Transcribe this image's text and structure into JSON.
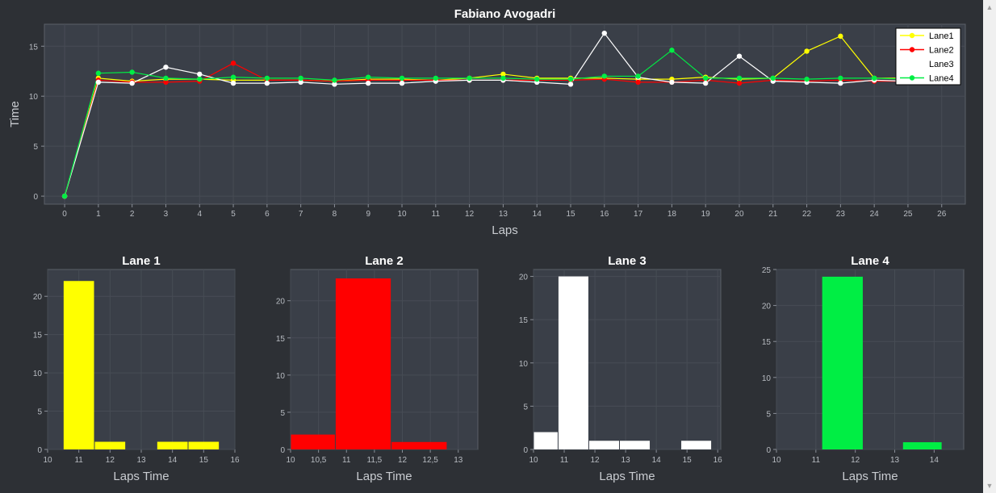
{
  "chart_data": [
    {
      "type": "line",
      "title": "Fabiano Avogadri",
      "xlabel": "Laps",
      "ylabel": "Time",
      "xlim": [
        -0.6,
        26.7
      ],
      "ylim": [
        -0.8,
        17.2
      ],
      "xticks": [
        0,
        1,
        2,
        3,
        4,
        5,
        6,
        7,
        8,
        9,
        10,
        11,
        12,
        13,
        14,
        15,
        16,
        17,
        18,
        19,
        20,
        21,
        22,
        23,
        24,
        25,
        26
      ],
      "yticks": [
        0,
        5,
        10,
        15
      ],
      "grid": true,
      "legend": "top-right",
      "series": [
        {
          "name": "Lane1",
          "color": "#ffff00",
          "x": [
            0,
            1,
            2,
            3,
            4,
            5,
            6,
            7,
            8,
            9,
            10,
            11,
            12,
            13,
            14,
            15,
            16,
            17,
            18,
            19,
            20,
            21,
            22,
            23,
            24,
            25
          ],
          "values": [
            0,
            11.8,
            11.5,
            11.7,
            11.7,
            11.6,
            11.6,
            11.6,
            11.5,
            11.7,
            11.7,
            11.6,
            11.8,
            12.2,
            11.8,
            11.8,
            11.8,
            11.7,
            11.7,
            11.9,
            11.7,
            11.8,
            14.5,
            16.0,
            11.8,
            11.8
          ]
        },
        {
          "name": "Lane2",
          "color": "#ff0000",
          "x": [
            0,
            1,
            2,
            3,
            4,
            5,
            6,
            7,
            8,
            9,
            10,
            11,
            12,
            13,
            14,
            15,
            16,
            17,
            18,
            19,
            20,
            21,
            22,
            23,
            24,
            25
          ],
          "values": [
            0,
            11.6,
            11.4,
            11.4,
            11.5,
            13.3,
            11.6,
            11.6,
            11.5,
            11.6,
            11.6,
            11.6,
            11.6,
            11.6,
            11.6,
            11.6,
            11.7,
            11.4,
            11.4,
            11.6,
            11.3,
            11.6,
            11.5,
            11.6,
            11.5,
            11.5
          ]
        },
        {
          "name": "Lane3",
          "color": "#ffffff",
          "x": [
            0,
            1,
            2,
            3,
            4,
            5,
            6,
            7,
            8,
            9,
            10,
            11,
            12,
            13,
            14,
            15,
            16,
            17,
            18,
            19,
            20,
            21,
            22,
            23,
            24,
            25
          ],
          "values": [
            0,
            11.4,
            11.3,
            12.9,
            12.2,
            11.3,
            11.3,
            11.4,
            11.2,
            11.3,
            11.3,
            11.5,
            11.6,
            11.6,
            11.4,
            11.2,
            16.3,
            11.9,
            11.4,
            11.3,
            14.0,
            11.5,
            11.4,
            11.3,
            11.6,
            11.5
          ]
        },
        {
          "name": "Lane4",
          "color": "#00ee44",
          "x": [
            0,
            1,
            2,
            3,
            4,
            5,
            6,
            7,
            8,
            9,
            10,
            11,
            12,
            13,
            14,
            15,
            16,
            17,
            18,
            19,
            20,
            21,
            22,
            23,
            24,
            25
          ],
          "values": [
            0,
            12.3,
            12.4,
            11.8,
            11.7,
            11.9,
            11.8,
            11.8,
            11.6,
            11.9,
            11.8,
            11.8,
            11.8,
            11.8,
            11.7,
            11.7,
            12.0,
            12.0,
            14.6,
            11.8,
            11.8,
            11.8,
            11.7,
            11.8,
            11.8,
            11.7
          ]
        }
      ]
    },
    {
      "type": "bar",
      "title": "Lane 1",
      "xlabel": "Laps Time",
      "color": "#ffff00",
      "xlim": [
        10,
        16
      ],
      "ylim": [
        0,
        23.5
      ],
      "xticks": [
        "10",
        "11",
        "12",
        "13",
        "14",
        "15",
        "16"
      ],
      "yticks": [
        0,
        5,
        10,
        15,
        20
      ],
      "bins": [
        [
          10.5,
          11.5,
          22
        ],
        [
          11.5,
          12.5,
          1
        ],
        [
          13.5,
          14.5,
          1
        ],
        [
          14.5,
          15.5,
          1
        ]
      ]
    },
    {
      "type": "bar",
      "title": "Lane 2",
      "xlabel": "Laps Time",
      "color": "#ff0000",
      "xlim": [
        10,
        13.35
      ],
      "ylim": [
        0,
        24.2
      ],
      "xticks": [
        "10",
        "10,5",
        "11",
        "11,5",
        "12",
        "12,5",
        "13"
      ],
      "yticks": [
        0,
        5,
        10,
        15,
        20
      ],
      "bins": [
        [
          10,
          10.8,
          2
        ],
        [
          10.8,
          11.8,
          23
        ],
        [
          11.8,
          12.8,
          1
        ]
      ]
    },
    {
      "type": "bar",
      "title": "Lane 3",
      "xlabel": "Laps Time",
      "color": "#ffffff",
      "xlim": [
        10,
        16.1
      ],
      "ylim": [
        0,
        20.8
      ],
      "xticks": [
        "10",
        "11",
        "12",
        "13",
        "14",
        "15",
        "16"
      ],
      "yticks": [
        0,
        5,
        10,
        15,
        20
      ],
      "bins": [
        [
          10,
          10.8,
          2
        ],
        [
          10.8,
          11.8,
          20
        ],
        [
          11.8,
          12.8,
          1
        ],
        [
          12.8,
          13.8,
          1
        ],
        [
          14.8,
          15.8,
          1
        ]
      ]
    },
    {
      "type": "bar",
      "title": "Lane 4",
      "xlabel": "Laps Time",
      "color": "#00ee44",
      "xlim": [
        10,
        14.75
      ],
      "ylim": [
        0,
        25
      ],
      "xticks": [
        "10",
        "11",
        "12",
        "13",
        "14"
      ],
      "yticks": [
        0,
        5,
        10,
        15,
        20,
        25
      ],
      "bins": [
        [
          11.15,
          12.2,
          24
        ],
        [
          13.2,
          14.2,
          1
        ]
      ]
    }
  ]
}
